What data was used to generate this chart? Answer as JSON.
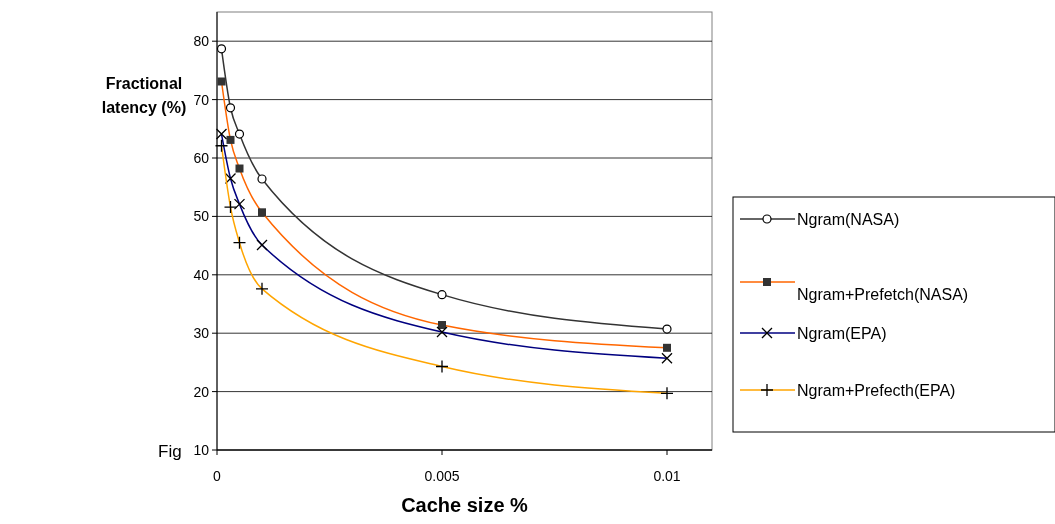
{
  "chart_data": {
    "type": "line",
    "xlabel": "Cache size %",
    "ylabel": "Fractional latency (%)",
    "x": [
      0.0001,
      0.0003,
      0.0005,
      0.001,
      0.005,
      0.01
    ],
    "series": [
      {
        "name": "Ngram(NASA)",
        "color": "#333333",
        "marker": "circle",
        "values": [
          78.7,
          68.6,
          64.1,
          56.4,
          36.6,
          30.7
        ]
      },
      {
        "name": "Ngram+Prefetch(NASA)",
        "color": "#ff6600",
        "marker": "square",
        "values": [
          73.1,
          63.1,
          58.2,
          50.7,
          31.4,
          27.5
        ]
      },
      {
        "name": "Ngram(EPA)",
        "color": "#000080",
        "marker": "cross",
        "values": [
          64.1,
          56.5,
          52.1,
          45.1,
          30.2,
          25.7
        ]
      },
      {
        "name": "Ngram+Prefecth(EPA)",
        "color": "#ffa500",
        "marker": "plus",
        "values": [
          62.1,
          51.6,
          45.5,
          37.6,
          24.3,
          19.7
        ]
      }
    ],
    "xlim": [
      0,
      0.011
    ],
    "xticks": [
      0,
      0.005,
      0.01
    ],
    "ylim": [
      10,
      85
    ],
    "yticks": [
      10,
      20,
      30,
      40,
      50,
      60,
      70,
      80
    ],
    "grid": "y",
    "legend": "right",
    "line_style": "solid",
    "annotations": [
      "Fig"
    ]
  }
}
